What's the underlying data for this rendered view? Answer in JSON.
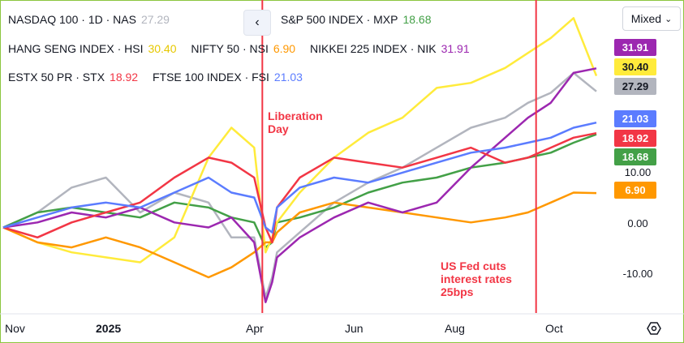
{
  "legend": [
    {
      "label": "NASDAQ 100 · 1D · NAS",
      "value": "27.29",
      "color": "#b2b5be"
    },
    {
      "label": "S&P 500 INDEX · MXP",
      "value": "18.68",
      "color": "#43a047"
    },
    {
      "label": "HANG SENG INDEX · HSI",
      "value": "30.40",
      "color": "#ffeb3b"
    },
    {
      "label": "NIFTY 50 · NSI",
      "value": "6.90",
      "color": "#ff9800"
    },
    {
      "label": "NIKKEI 225 INDEX · NIK",
      "value": "31.91",
      "color": "#9c27b0"
    },
    {
      "label": "ESTX 50 PR · STX",
      "value": "18.92",
      "color": "#f23645"
    },
    {
      "label": "FTSE 100 INDEX · FSI",
      "value": "21.03",
      "color": "#5b7cff"
    }
  ],
  "toolbar": {
    "collapse_icon": "chevron-left-icon",
    "scale_mode": "Mixed",
    "scale_mode_icon": "chevron-down-icon",
    "settings_icon": "settings-icon"
  },
  "annotations": [
    {
      "text": "Liberation Day",
      "date": "2025-04-02",
      "color": "#f23645"
    },
    {
      "text": "US Fed cuts interest rates 25bps",
      "date": "2025-09-17",
      "color": "#f23645"
    }
  ],
  "price_badges": [
    {
      "value": "31.91",
      "color": "#9c27b0"
    },
    {
      "value": "30.40",
      "color": "#ffeb3b"
    },
    {
      "value": "27.29",
      "color": "#b2b5be"
    },
    {
      "value": "21.03",
      "color": "#5b7cff"
    },
    {
      "value": "18.92",
      "color": "#f23645"
    },
    {
      "value": "18.68",
      "color": "#43a047"
    },
    {
      "value": "6.90",
      "color": "#ff9800"
    }
  ],
  "chart_data": {
    "type": "line",
    "xlabel": "",
    "ylabel": "",
    "x_ticks": [
      "Nov",
      "2025",
      "Apr",
      "Jun",
      "Aug",
      "Oct"
    ],
    "y_ticks": [
      "10.00",
      "0.00",
      "-10.00"
    ],
    "ylim": [
      -17,
      44
    ],
    "grid": false,
    "legend_position": "top-left",
    "x": [
      "2024-10-25",
      "2024-11-15",
      "2024-12-06",
      "2024-12-27",
      "2025-01-17",
      "2025-02-07",
      "2025-02-28",
      "2025-03-14",
      "2025-03-28",
      "2025-04-04",
      "2025-04-08",
      "2025-04-11",
      "2025-04-25",
      "2025-05-16",
      "2025-06-06",
      "2025-06-27",
      "2025-07-18",
      "2025-08-08",
      "2025-08-29",
      "2025-09-12",
      "2025-09-26",
      "2025-10-10",
      "2025-10-24"
    ],
    "series": [
      {
        "name": "NASDAQ 100",
        "color": "#b2b5be",
        "values": [
          0,
          3,
          8,
          10,
          3,
          7,
          5,
          -2,
          -2,
          -14,
          -10,
          -5,
          -1,
          5,
          9,
          12,
          16,
          20,
          22,
          25,
          27,
          31,
          27.29
        ]
      },
      {
        "name": "S&P 500 INDEX",
        "color": "#43a047",
        "values": [
          0,
          3,
          4,
          3,
          2,
          5,
          4,
          2,
          1,
          -4,
          -3,
          1,
          2,
          4,
          7,
          9,
          10,
          12,
          13,
          14,
          15,
          17,
          18.68
        ]
      },
      {
        "name": "HANG SENG INDEX",
        "color": "#ffeb3b",
        "values": [
          0,
          -3,
          -5,
          -6,
          -7,
          -2,
          14,
          20,
          16,
          -5,
          -2,
          1,
          7,
          14,
          19,
          22,
          28,
          29,
          32,
          35,
          38,
          42,
          30.4
        ]
      },
      {
        "name": "NIFTY 50",
        "color": "#ff9800",
        "values": [
          0,
          -3,
          -4,
          -2,
          -4,
          -7,
          -10,
          -8,
          -5,
          -3,
          -3,
          -1,
          3,
          5,
          4,
          3,
          2,
          1,
          2,
          3,
          5,
          7,
          6.9
        ]
      },
      {
        "name": "NIKKEI 225 INDEX",
        "color": "#9c27b0",
        "values": [
          0,
          1,
          3,
          2,
          4,
          1,
          0,
          2,
          -3,
          -15,
          -11,
          -6,
          -2,
          2,
          5,
          3,
          5,
          12,
          18,
          22,
          25,
          31,
          31.91
        ]
      },
      {
        "name": "ESTX 50 PR",
        "color": "#f23645",
        "values": [
          0,
          -2,
          1,
          3,
          5,
          10,
          14,
          13,
          10,
          0,
          -3,
          4,
          10,
          14,
          13,
          12,
          14,
          16,
          13,
          14,
          16,
          18,
          18.92
        ]
      },
      {
        "name": "FTSE 100 INDEX",
        "color": "#5b7cff",
        "values": [
          0,
          2,
          4,
          5,
          4,
          7,
          10,
          7,
          6,
          0,
          -1,
          4,
          8,
          10,
          9,
          11,
          13,
          15,
          16,
          17,
          18,
          20,
          21.03
        ]
      }
    ]
  }
}
